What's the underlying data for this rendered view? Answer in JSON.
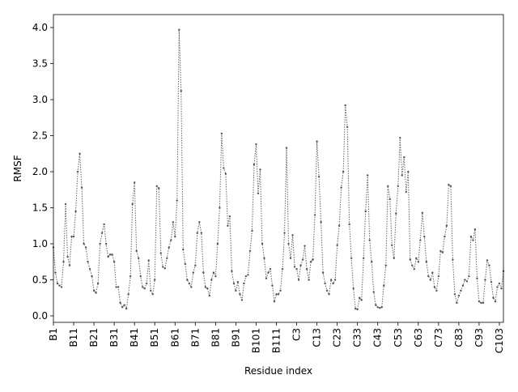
{
  "chart_data": {
    "type": "line",
    "xlabel": "Residue index",
    "ylabel": "RMSF",
    "categories": [
      "B1",
      null,
      null,
      null,
      null,
      null,
      null,
      null,
      null,
      null,
      "B11",
      null,
      null,
      null,
      null,
      null,
      null,
      null,
      null,
      null,
      "B21",
      null,
      null,
      null,
      null,
      null,
      null,
      null,
      null,
      null,
      "B31",
      null,
      null,
      null,
      null,
      null,
      null,
      null,
      null,
      null,
      "B41",
      null,
      null,
      null,
      null,
      null,
      null,
      null,
      null,
      null,
      "B51",
      null,
      null,
      null,
      null,
      null,
      null,
      null,
      null,
      null,
      "B61",
      null,
      null,
      null,
      null,
      null,
      null,
      null,
      null,
      null,
      "B71",
      null,
      null,
      null,
      null,
      null,
      null,
      null,
      null,
      null,
      "B81",
      null,
      null,
      null,
      null,
      null,
      null,
      null,
      null,
      null,
      "B91",
      null,
      null,
      null,
      null,
      null,
      null,
      null,
      null,
      null,
      "B101",
      null,
      null,
      null,
      null,
      null,
      null,
      null,
      null,
      null,
      "B111",
      null,
      null,
      null,
      null,
      null,
      null,
      null,
      null,
      null,
      "C3",
      null,
      null,
      null,
      null,
      null,
      null,
      null,
      null,
      null,
      "C13",
      null,
      null,
      null,
      null,
      null,
      null,
      null,
      null,
      null,
      "C23",
      null,
      null,
      null,
      null,
      null,
      null,
      null,
      null,
      null,
      "C33",
      null,
      null,
      null,
      null,
      null,
      null,
      null,
      null,
      null,
      "C43",
      null,
      null,
      null,
      null,
      null,
      null,
      null,
      null,
      null,
      "C53",
      null,
      null,
      null,
      null,
      null,
      null,
      null,
      null,
      null,
      "C63",
      null,
      null,
      null,
      null,
      null,
      null,
      null,
      null,
      null,
      "C73",
      null,
      null,
      null,
      null,
      null,
      null,
      null,
      null,
      null,
      "C83",
      null,
      null,
      null,
      null,
      null,
      null,
      null,
      null,
      null,
      "C93",
      null,
      null,
      null,
      null,
      null,
      null,
      null,
      null,
      null,
      "C103",
      null,
      null
    ],
    "values": [
      0.95,
      0.6,
      0.45,
      0.42,
      0.4,
      0.75,
      1.55,
      0.82,
      0.7,
      1.1,
      1.1,
      1.45,
      2.0,
      2.25,
      1.78,
      1.0,
      0.95,
      0.75,
      0.65,
      0.55,
      0.35,
      0.32,
      0.45,
      1.0,
      1.15,
      1.27,
      1.0,
      0.82,
      0.85,
      0.85,
      0.75,
      0.4,
      0.4,
      0.18,
      0.12,
      0.15,
      0.1,
      0.3,
      0.55,
      1.55,
      1.85,
      0.9,
      0.8,
      0.55,
      0.4,
      0.38,
      0.45,
      0.77,
      0.35,
      0.3,
      0.5,
      1.8,
      1.77,
      0.87,
      0.68,
      0.66,
      0.8,
      0.95,
      1.05,
      1.3,
      1.1,
      1.6,
      3.97,
      3.12,
      0.92,
      0.72,
      0.5,
      0.45,
      0.4,
      0.6,
      0.7,
      1.15,
      1.3,
      1.15,
      0.6,
      0.4,
      0.38,
      0.28,
      0.5,
      0.6,
      0.55,
      1.0,
      1.5,
      2.53,
      2.05,
      1.97,
      1.25,
      1.38,
      0.62,
      0.45,
      0.35,
      0.47,
      0.3,
      0.22,
      0.45,
      0.55,
      0.57,
      0.9,
      1.18,
      2.1,
      2.38,
      1.7,
      2.03,
      1.0,
      0.8,
      0.52,
      0.6,
      0.65,
      0.42,
      0.2,
      0.3,
      0.3,
      0.35,
      0.65,
      1.15,
      2.33,
      1.0,
      0.8,
      1.12,
      0.68,
      0.65,
      0.5,
      0.7,
      0.78,
      0.97,
      0.65,
      0.5,
      0.75,
      0.78,
      1.4,
      2.42,
      1.93,
      1.3,
      0.6,
      0.45,
      0.35,
      0.3,
      0.5,
      0.45,
      0.5,
      0.98,
      1.25,
      1.78,
      2.0,
      2.92,
      2.62,
      1.27,
      0.8,
      0.38,
      0.1,
      0.09,
      0.25,
      0.22,
      0.8,
      1.45,
      1.95,
      1.05,
      0.75,
      0.33,
      0.15,
      0.12,
      0.11,
      0.12,
      0.42,
      0.7,
      1.8,
      1.62,
      0.98,
      0.8,
      1.42,
      1.8,
      2.47,
      1.95,
      2.2,
      1.72,
      2.0,
      0.78,
      0.7,
      0.65,
      0.8,
      0.75,
      1.05,
      1.43,
      1.1,
      0.75,
      0.55,
      0.5,
      0.6,
      0.4,
      0.35,
      0.55,
      0.9,
      0.88,
      1.1,
      1.25,
      1.82,
      1.8,
      0.78,
      0.3,
      0.18,
      0.28,
      0.35,
      0.42,
      0.5,
      0.48,
      0.55,
      1.1,
      1.05,
      1.2,
      0.52,
      0.2,
      0.18,
      0.18,
      0.5,
      0.77,
      0.7,
      0.47,
      0.25,
      0.2,
      0.4,
      0.45,
      0.38,
      0.62
    ],
    "color": "#666666",
    "ylim": [
      -0.09,
      4.18
    ],
    "yticks": [
      {
        "value": 0,
        "label": "0.0"
      },
      0.5,
      {
        "value": 1,
        "label": "1.0"
      },
      1.5,
      {
        "value": 2,
        "label": "2.0"
      },
      2.5,
      {
        "value": 3,
        "label": "3.0"
      },
      3.5,
      {
        "value": 4,
        "label": "4.0"
      }
    ],
    "grid": false
  }
}
